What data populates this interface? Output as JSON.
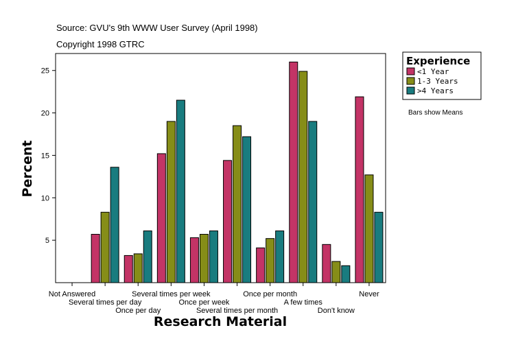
{
  "chart_data": {
    "type": "bar",
    "source": "Source: GVU's 9th WWW User Survey (April 1998)",
    "copyright": "Copyright 1998 GTRC",
    "xlabel": "Research Material",
    "ylabel": "Percent",
    "ylim": [
      0,
      27
    ],
    "yticks": [
      5,
      10,
      15,
      20,
      25
    ],
    "grid": false,
    "legend_title": "Experience",
    "legend_position": "top-right",
    "note": "Bars show Means",
    "categories": [
      "Not Answered",
      "Several times per day",
      "Once per day",
      "Several times per week",
      "Once per week",
      "Several times per month",
      "Once per month",
      "A few times",
      "Don't know",
      "Never"
    ],
    "series": [
      {
        "name": "<1 Year",
        "color": "#c33466",
        "values": [
          0,
          5.7,
          3.2,
          15.2,
          5.3,
          14.4,
          4.1,
          26.0,
          4.5,
          21.9
        ]
      },
      {
        "name": "1-3 Years",
        "color": "#868d18",
        "values": [
          0,
          8.3,
          3.4,
          19.0,
          5.7,
          18.5,
          5.2,
          24.9,
          2.5,
          12.7
        ]
      },
      {
        "name": ">4 Years",
        "color": "#197c7f",
        "values": [
          0,
          13.6,
          6.1,
          21.5,
          6.1,
          17.2,
          6.1,
          19.0,
          2.0,
          8.3
        ]
      }
    ]
  }
}
